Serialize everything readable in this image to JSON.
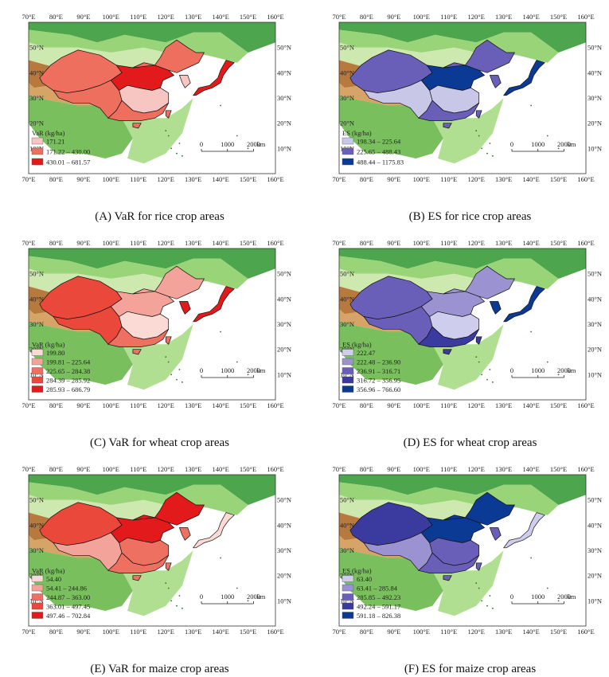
{
  "axes": {
    "lon_labels": [
      "70°E",
      "80°E",
      "90°E",
      "100°E",
      "110°E",
      "120°E",
      "130°E",
      "140°E",
      "150°E",
      "160°E"
    ],
    "lat_labels": [
      "10°N",
      "20°N",
      "30°N",
      "40°N",
      "50°N"
    ]
  },
  "scale_bar": {
    "ticks": [
      "0",
      "1000",
      "2000"
    ],
    "unit": "km"
  },
  "panels": [
    {
      "id": "A",
      "caption": "(A) VaR for rice crop areas",
      "legend_title": "VaR (kg/ha)",
      "legend": [
        {
          "label": "171.21",
          "color": "#f7c5c2"
        },
        {
          "label": "171.22 – 430.00",
          "color": "#ee6f5d"
        },
        {
          "label": "430.01 – 681.57",
          "color": "#e31a1c"
        }
      ],
      "regions": {
        "nw": "#ee6f5d",
        "ne": "#ee6f5d",
        "n": "#e31a1c",
        "c": "#f7c5c2",
        "s": "#ee6f5d",
        "sw": "#ee6f5d",
        "kor": "#f7c5c2",
        "jp": "#e31a1c",
        "tw": "#ee6f5d",
        "hn": "#ee6f5d"
      }
    },
    {
      "id": "B",
      "caption": "(B) ES for rice crop areas",
      "legend_title": "ES (kg/ha)",
      "legend": [
        {
          "label": "198.34 – 225.64",
          "color": "#c9c7e8"
        },
        {
          "label": "225.65 – 488.43",
          "color": "#6a5fb8"
        },
        {
          "label": "488.44 – 1175.83",
          "color": "#0b3a94"
        }
      ],
      "regions": {
        "nw": "#6a5fb8",
        "ne": "#6a5fb8",
        "n": "#0b3a94",
        "c": "#c9c7e8",
        "s": "#6a5fb8",
        "sw": "#c9c7e8",
        "kor": "#6a5fb8",
        "jp": "#0b3a94",
        "tw": "#6a5fb8",
        "hn": "#6a5fb8"
      }
    },
    {
      "id": "C",
      "caption": "(C) VaR for wheat crop areas",
      "legend_title": "VaR (kg/ha)",
      "legend": [
        {
          "label": "199.80",
          "color": "#fbd9d4"
        },
        {
          "label": "199.81 – 225.64",
          "color": "#f4a39a"
        },
        {
          "label": "225.65 – 284.38",
          "color": "#ee7060"
        },
        {
          "label": "284.39 – 285.92",
          "color": "#e9483a"
        },
        {
          "label": "285.93 – 686.79",
          "color": "#e31a1c"
        }
      ],
      "regions": {
        "nw": "#e9483a",
        "ne": "#f4a39a",
        "n": "#f4a39a",
        "c": "#fbd9d4",
        "s": "#ee7060",
        "sw": "#e9483a",
        "kor": "#e31a1c",
        "jp": "#e31a1c",
        "tw": "#ee7060",
        "hn": "#ee7060"
      }
    },
    {
      "id": "D",
      "caption": "(D) ES for wheat crop areas",
      "legend_title": "ES (kg/ha)",
      "legend": [
        {
          "label": "222.47",
          "color": "#cfcdee"
        },
        {
          "label": "222.48 – 236.90",
          "color": "#9b93d1"
        },
        {
          "label": "236.91 – 316.71",
          "color": "#6a5fb8"
        },
        {
          "label": "316.72 – 356.95",
          "color": "#3b3a9e"
        },
        {
          "label": "356.96 – 766.60",
          "color": "#0b3a94"
        }
      ],
      "regions": {
        "nw": "#6a5fb8",
        "ne": "#9b93d1",
        "n": "#9b93d1",
        "c": "#cfcdee",
        "s": "#3b3a9e",
        "sw": "#6a5fb8",
        "kor": "#0b3a94",
        "jp": "#0b3a94",
        "tw": "#3b3a9e",
        "hn": "#3b3a9e"
      }
    },
    {
      "id": "E",
      "caption": "(E) VaR for maize crop areas",
      "legend_title": "VaR (kg/ha)",
      "legend": [
        {
          "label": "54.40",
          "color": "#fbd9d4"
        },
        {
          "label": "54.41 – 244.86",
          "color": "#f4a39a"
        },
        {
          "label": "244.87 – 363.00",
          "color": "#ee7060"
        },
        {
          "label": "363.01 – 497.45",
          "color": "#e9483a"
        },
        {
          "label": "497.46 – 702.84",
          "color": "#e31a1c"
        }
      ],
      "regions": {
        "nw": "#e9483a",
        "ne": "#e31a1c",
        "n": "#e31a1c",
        "c": "#ee7060",
        "s": "#ee7060",
        "sw": "#f4a39a",
        "kor": "#ee7060",
        "jp": "#fbd9d4",
        "tw": "#ee7060",
        "hn": "#ee7060"
      }
    },
    {
      "id": "F",
      "caption": "(F) ES for maize crop areas",
      "legend_title": "ES (kg/ha)",
      "legend": [
        {
          "label": "63.40",
          "color": "#cfcdee"
        },
        {
          "label": "63.41 – 285.84",
          "color": "#9b93d1"
        },
        {
          "label": "285.85 – 492.23",
          "color": "#6a5fb8"
        },
        {
          "label": "492.24 – 591.17",
          "color": "#3b3a9e"
        },
        {
          "label": "591.18 – 826.38",
          "color": "#0b3a94"
        }
      ],
      "regions": {
        "nw": "#3b3a9e",
        "ne": "#0b3a94",
        "n": "#0b3a94",
        "c": "#6a5fb8",
        "s": "#6a5fb8",
        "sw": "#9b93d1",
        "kor": "#6a5fb8",
        "jp": "#cfcdee",
        "tw": "#6a5fb8",
        "hn": "#6a5fb8"
      }
    }
  ]
}
